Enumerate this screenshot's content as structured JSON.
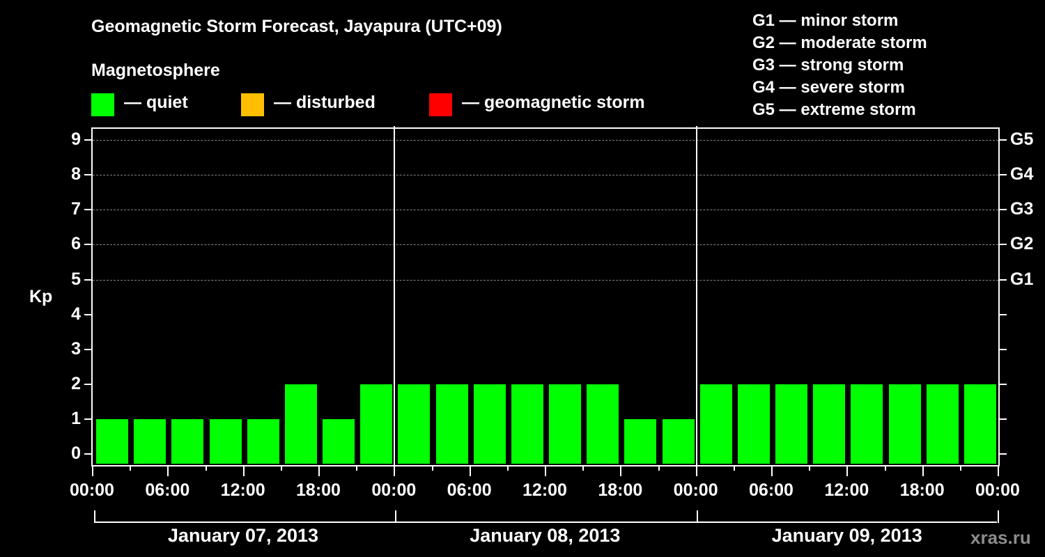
{
  "title": "Geomagnetic Storm Forecast, Jayapura (UTC+09)",
  "subtitle": "Magnetosphere",
  "legend": [
    {
      "label": "— quiet",
      "color": "#00ff00"
    },
    {
      "label": "— disturbed",
      "color": "#ffbf00"
    },
    {
      "label": "— geomagnetic storm",
      "color": "#ff0000"
    }
  ],
  "g_legend": [
    "G1 — minor storm",
    "G2 — moderate storm",
    "G3 — strong storm",
    "G4 — severe storm",
    "G5 — extreme storm"
  ],
  "watermark": "xras.ru",
  "chart_data": {
    "type": "bar",
    "title": "Geomagnetic Storm Forecast, Jayapura (UTC+09)",
    "ylabel": "Kp",
    "xlabel": "",
    "ylim": [
      0,
      9
    ],
    "yticks": [
      0,
      1,
      2,
      3,
      4,
      5,
      6,
      7,
      8,
      9
    ],
    "right_axis_labels": {
      "5": "G1",
      "6": "G2",
      "7": "G3",
      "8": "G4",
      "9": "G5"
    },
    "grid": "dashed horizontal lines at Kp 5-9",
    "xtick_labels": [
      "00:00",
      "06:00",
      "12:00",
      "18:00",
      "00:00",
      "06:00",
      "12:00",
      "18:00",
      "00:00",
      "06:00",
      "12:00",
      "18:00",
      "00:00"
    ],
    "days": [
      "January 07, 2013",
      "January 08, 2013",
      "January 09, 2013"
    ],
    "categories": [
      "Jan 07 00-03",
      "Jan 07 03-06",
      "Jan 07 06-09",
      "Jan 07 09-12",
      "Jan 07 12-15",
      "Jan 07 15-18",
      "Jan 07 18-21",
      "Jan 07 21-24",
      "Jan 08 00-03",
      "Jan 08 03-06",
      "Jan 08 06-09",
      "Jan 08 09-12",
      "Jan 08 12-15",
      "Jan 08 15-18",
      "Jan 08 18-21",
      "Jan 08 21-24",
      "Jan 09 00-03",
      "Jan 09 03-06",
      "Jan 09 06-09",
      "Jan 09 09-12",
      "Jan 09 12-15",
      "Jan 09 15-18",
      "Jan 09 18-21",
      "Jan 09 21-24"
    ],
    "values": [
      1,
      1,
      1,
      1,
      1,
      2,
      1,
      2,
      2,
      2,
      2,
      2,
      2,
      2,
      1,
      1,
      2,
      2,
      2,
      2,
      2,
      2,
      2,
      2
    ],
    "bar_color": "#00ff00",
    "legend": [
      "quiet",
      "disturbed",
      "geomagnetic storm"
    ]
  }
}
